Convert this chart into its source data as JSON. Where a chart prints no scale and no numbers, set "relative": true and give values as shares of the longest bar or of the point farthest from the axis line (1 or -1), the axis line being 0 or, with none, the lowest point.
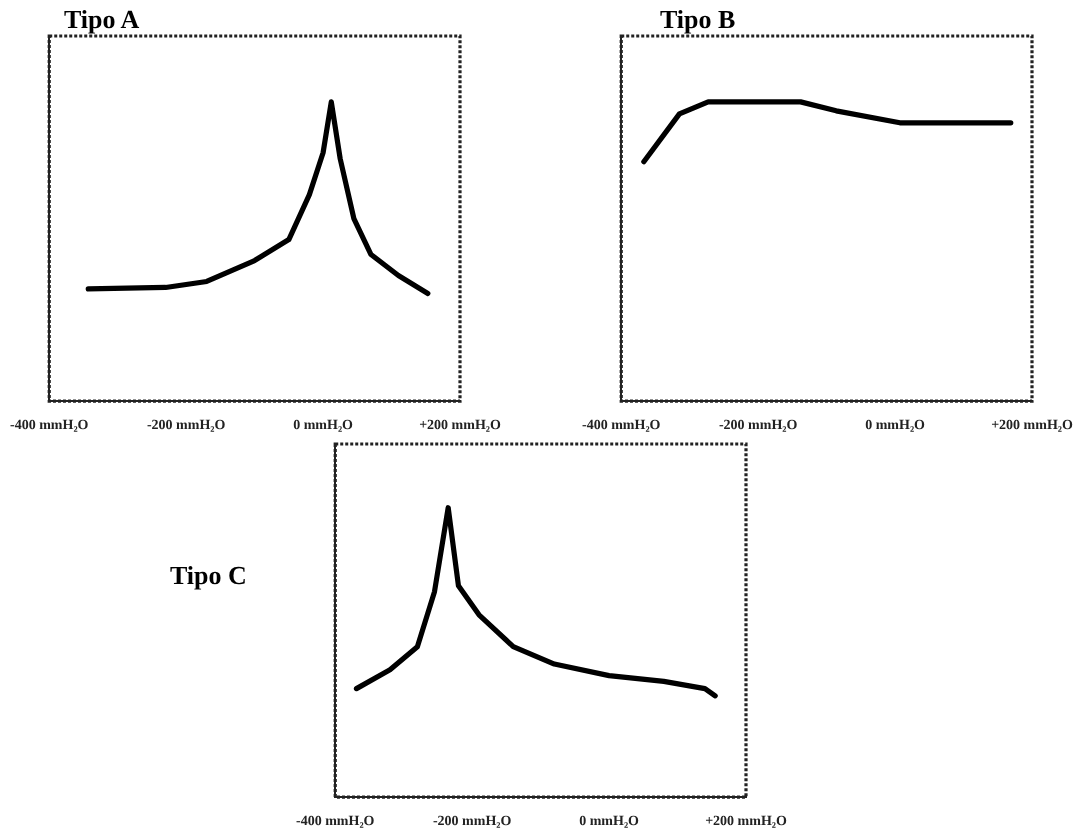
{
  "chart_data": [
    {
      "type": "line",
      "title": "Tipo A",
      "relative": true,
      "xlim": [
        -400,
        200
      ],
      "xticks": [
        {
          "value": -400,
          "label": "-400 mmH₂O"
        },
        {
          "value": -200,
          "label": "-200 mmH₂O"
        },
        {
          "value": 0,
          "label": "0 mmH₂O"
        },
        {
          "value": 200,
          "label": "+200 mmH₂O"
        }
      ],
      "marker": "none",
      "line_style": "solid",
      "grid": false,
      "legend": false,
      "series": [
        {
          "color": "#000000",
          "x": [
            -343,
            -230,
            -170,
            -100,
            -50,
            -20,
            0,
            12,
            25,
            45,
            70,
            110,
            153
          ],
          "values": [
            0.375,
            0.38,
            0.4,
            0.47,
            0.54,
            0.69,
            0.83,
            1,
            0.81,
            0.61,
            0.49,
            0.42,
            0.36
          ]
        }
      ]
    },
    {
      "type": "line",
      "title": "Tipo B",
      "relative": true,
      "xlim": [
        -400,
        200
      ],
      "xticks": [
        {
          "value": -400,
          "label": "-400 mmH₂O"
        },
        {
          "value": -200,
          "label": "-200 mmH₂O"
        },
        {
          "value": 0,
          "label": "0 mmH₂O"
        },
        {
          "value": 200,
          "label": "+200 mmH₂O"
        }
      ],
      "marker": "none",
      "line_style": "solid",
      "grid": false,
      "legend": false,
      "series": [
        {
          "color": "#000000",
          "x": [
            -367,
            -315,
            -273,
            -138,
            -86,
            7,
            169
          ],
          "values": [
            0.8,
            0.96,
            1,
            1,
            0.97,
            0.93,
            0.93
          ]
        }
      ]
    },
    {
      "type": "line",
      "title": "Tipo C",
      "relative": true,
      "xlim": [
        -400,
        200
      ],
      "xticks": [
        {
          "value": -400,
          "label": "-400 mmH₂O"
        },
        {
          "value": -200,
          "label": "-200 mmH₂O"
        },
        {
          "value": 0,
          "label": "0 mmH₂O"
        },
        {
          "value": 200,
          "label": "+200 mmH₂O"
        }
      ],
      "marker": "none",
      "line_style": "solid",
      "grid": false,
      "legend": false,
      "series": [
        {
          "color": "#000000",
          "x": [
            -369,
            -320,
            -280,
            -255,
            -235,
            -220,
            -190,
            -140,
            -80,
            0,
            80,
            140,
            155
          ],
          "values": [
            0.375,
            0.44,
            0.52,
            0.71,
            1,
            0.73,
            0.63,
            0.52,
            0.46,
            0.42,
            0.4,
            0.375,
            0.35
          ]
        }
      ]
    }
  ]
}
